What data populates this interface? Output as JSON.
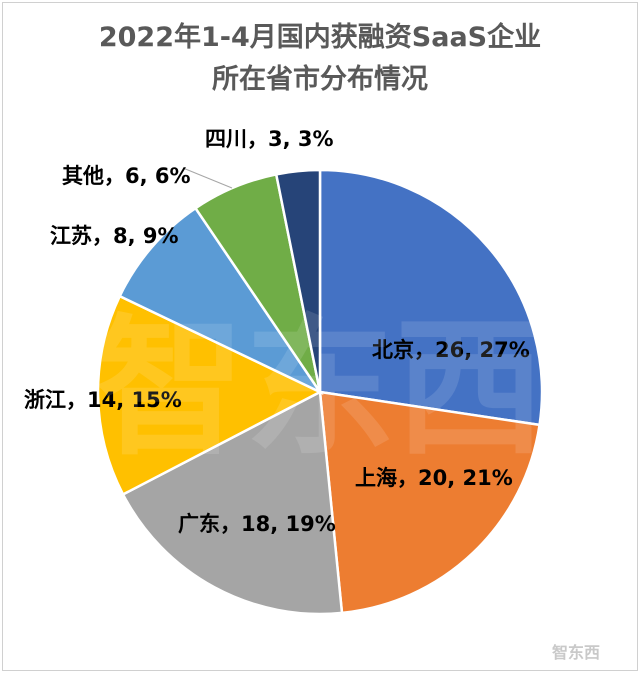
{
  "chart_data": {
    "type": "pie",
    "title_lines": [
      "2022年1-4月国内获融资SaaS企业",
      "所在省市分布情况"
    ],
    "slices": [
      {
        "name": "北京",
        "value": 26,
        "percent": "27%",
        "label": "北京，26, 27%",
        "color": "#4472C4"
      },
      {
        "name": "上海",
        "value": 20,
        "percent": "21%",
        "label": "上海，20, 21%",
        "color": "#ED7D31"
      },
      {
        "name": "广东",
        "value": 18,
        "percent": "19%",
        "label": "广东，18, 19%",
        "color": "#A5A5A5"
      },
      {
        "name": "浙江",
        "value": 14,
        "percent": "15%",
        "label": "浙江，14, 15%",
        "color": "#FFC000"
      },
      {
        "name": "江苏",
        "value": 8,
        "percent": "9%",
        "label": "江苏，8, 9%",
        "color": "#5B9BD5"
      },
      {
        "name": "其他",
        "value": 6,
        "percent": "6%",
        "label": "其他，6, 6%",
        "color": "#70AD47"
      },
      {
        "name": "四川",
        "value": 3,
        "percent": "3%",
        "label": "四川，3, 3%",
        "color": "#264478"
      }
    ]
  },
  "watermark": {
    "text": "智东西"
  }
}
